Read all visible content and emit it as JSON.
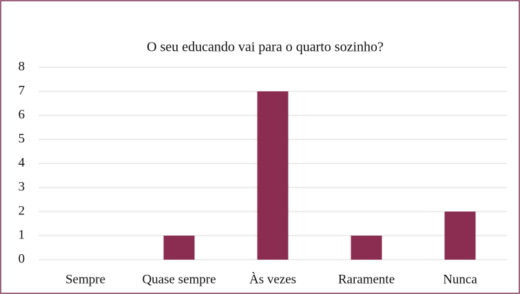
{
  "chart_data": {
    "type": "bar",
    "title": "O seu educando vai para o quarto sozinho?",
    "categories": [
      "Sempre",
      "Quase sempre",
      "Às vezes",
      "Raramente",
      "Nunca"
    ],
    "values": [
      0,
      1,
      7,
      1,
      2
    ],
    "color": "#8b2d50",
    "ylim": [
      0,
      8
    ],
    "yticks": [
      0,
      1,
      2,
      3,
      4,
      5,
      6,
      7,
      8
    ],
    "grid": true
  }
}
